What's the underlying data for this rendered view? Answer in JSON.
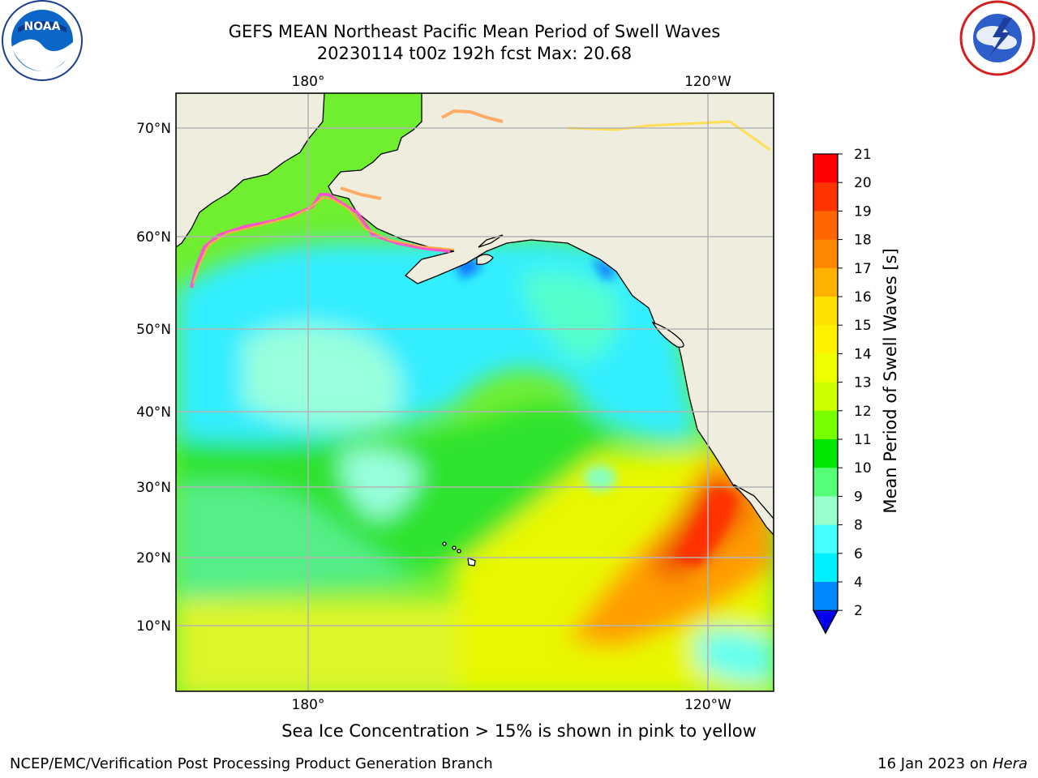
{
  "title_line1": "GEFS MEAN Northeast Pacific Mean Period of Swell Waves",
  "title_line2": "20230114 t00z 192h fcst   Max: 20.68",
  "caption": "Sea Ice Concentration > 15% is shown in pink to yellow",
  "footer_left": "NCEP/EMC/Verification Post Processing Product Generation Branch",
  "footer_right_date": "16 Jan 2023 on ",
  "footer_right_host": "Hera",
  "logos": {
    "left": "NOAA",
    "right": "NATIONAL WEATHER SERVICE"
  },
  "map": {
    "lon_labels_top": [
      "180°",
      "120°W"
    ],
    "lon_labels_bottom": [
      "180°",
      "120°W"
    ],
    "lat_labels": [
      "70°N",
      "60°N",
      "50°N",
      "40°N",
      "30°N",
      "20°N",
      "10°N"
    ],
    "land_color": "#eeedde"
  },
  "colorbar": {
    "label": "Mean Period of Swell Waves [s]",
    "ticks": [
      "21",
      "20",
      "19",
      "18",
      "17",
      "16",
      "15",
      "14",
      "13",
      "12",
      "11",
      "10",
      "9",
      "8",
      "6",
      "4",
      "2"
    ],
    "colors_top_to_bottom": [
      "#ff0000",
      "#ff3300",
      "#ff6600",
      "#ff8800",
      "#ffb300",
      "#ffe100",
      "#fff200",
      "#eeff00",
      "#ccff00",
      "#77ff00",
      "#00e600",
      "#55ff77",
      "#99ffcc",
      "#44ffff",
      "#00f0ff",
      "#0088ff"
    ],
    "extend_color": "#0000ee"
  }
}
